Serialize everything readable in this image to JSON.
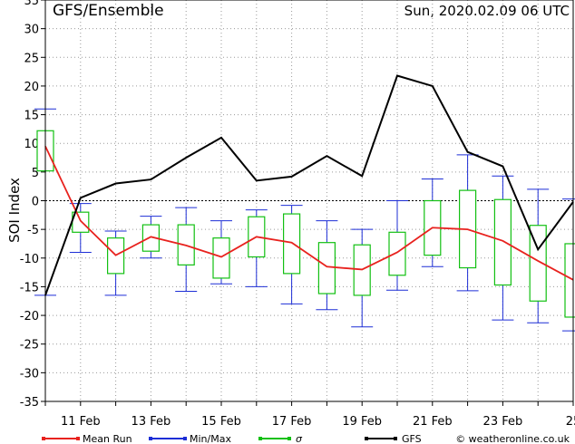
{
  "header": {
    "title": "GFS/Ensemble",
    "run": "Sun, 2020.02.09   06 UTC"
  },
  "colors": {
    "mean_run": "#e8221e",
    "min_max": "#1d2ed6",
    "sigma": "#12c012",
    "gfs": "#000000",
    "grid": "#9a9a9a"
  },
  "legend": {
    "mean_run": "Mean Run",
    "min_max": "Min/Max",
    "sigma": "σ",
    "gfs": "GFS",
    "credit": "© weatheronline.co.uk"
  },
  "chart_data": {
    "type": "line",
    "ylabel": "SOI Index",
    "ylim": [
      -35,
      35
    ],
    "yticks": [
      35,
      30,
      25,
      20,
      15,
      10,
      5,
      0,
      -5,
      -10,
      -15,
      -20,
      -25,
      -30,
      -35
    ],
    "xlim": [
      0,
      15
    ],
    "xticks": [
      {
        "x": 1,
        "label": "11 Feb"
      },
      {
        "x": 3,
        "label": "13 Feb"
      },
      {
        "x": 5,
        "label": "15 Feb"
      },
      {
        "x": 7,
        "label": "17 Feb"
      },
      {
        "x": 9,
        "label": "19 Feb"
      },
      {
        "x": 11,
        "label": "21 Feb"
      },
      {
        "x": 13,
        "label": "23 Feb"
      },
      {
        "x": 15,
        "label": "25"
      }
    ],
    "gfs": {
      "x": [
        0,
        1,
        2,
        3,
        4,
        5,
        6,
        7,
        8,
        9,
        10,
        11,
        12,
        13,
        14,
        15
      ],
      "y": [
        -16.5,
        0.5,
        3,
        3.7,
        7.5,
        11,
        3.5,
        4.2,
        7.8,
        4.3,
        21.8,
        20,
        8.5,
        6,
        -8.5,
        -0.2
      ]
    },
    "mean_run": {
      "x": [
        0,
        1,
        2,
        3,
        4,
        5,
        6,
        7,
        8,
        9,
        10,
        11,
        12,
        13,
        14,
        15
      ],
      "y": [
        9.5,
        -3.5,
        -9.5,
        -6.3,
        -7.8,
        -9.8,
        -6.3,
        -7.3,
        -11.5,
        -12,
        -9,
        -4.7,
        -5,
        -7,
        -10.5,
        -13.8
      ]
    },
    "ensemble": [
      {
        "x": 0,
        "min": -16.5,
        "max": 16,
        "sigma_low": 5.2,
        "sigma_high": 12.2
      },
      {
        "x": 1,
        "min": -9,
        "max": -0.5,
        "sigma_low": -5.5,
        "sigma_high": -2
      },
      {
        "x": 2,
        "min": -16.5,
        "max": -5.3,
        "sigma_low": -12.7,
        "sigma_high": -6.5
      },
      {
        "x": 3,
        "min": -10,
        "max": -2.7,
        "sigma_low": -8.8,
        "sigma_high": -4.2
      },
      {
        "x": 4,
        "min": -15.8,
        "max": -1.2,
        "sigma_low": -11.2,
        "sigma_high": -4.2
      },
      {
        "x": 5,
        "min": -14.5,
        "max": -3.5,
        "sigma_low": -13.5,
        "sigma_high": -6.5
      },
      {
        "x": 6,
        "min": -15,
        "max": -1.6,
        "sigma_low": -9.8,
        "sigma_high": -2.8
      },
      {
        "x": 7,
        "min": -18,
        "max": -0.8,
        "sigma_low": -12.7,
        "sigma_high": -2.3
      },
      {
        "x": 8,
        "min": -19,
        "max": -3.5,
        "sigma_low": -16.2,
        "sigma_high": -7.3
      },
      {
        "x": 9,
        "min": -22,
        "max": -5,
        "sigma_low": -16.5,
        "sigma_high": -7.7
      },
      {
        "x": 10,
        "min": -15.6,
        "max": 0,
        "sigma_low": -13,
        "sigma_high": -5.5
      },
      {
        "x": 11,
        "min": -11.5,
        "max": 3.8,
        "sigma_low": -9.5,
        "sigma_high": 0
      },
      {
        "x": 12,
        "min": -15.7,
        "max": 8,
        "sigma_low": -11.7,
        "sigma_high": 1.8
      },
      {
        "x": 13,
        "min": -20.8,
        "max": 4.3,
        "sigma_low": -14.7,
        "sigma_high": 0.2
      },
      {
        "x": 14,
        "min": -21.3,
        "max": 2,
        "sigma_low": -17.5,
        "sigma_high": -4.3
      },
      {
        "x": 15,
        "min": -22.7,
        "max": 0.3,
        "sigma_low": -20.3,
        "sigma_high": -7.5
      }
    ],
    "grid": true
  }
}
